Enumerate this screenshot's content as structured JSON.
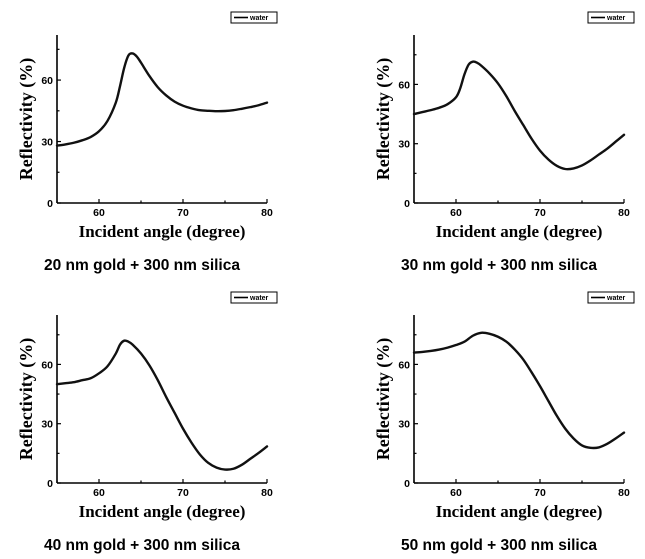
{
  "chart_data": [
    {
      "type": "line",
      "caption": "20 nm gold + 300 nm silica",
      "xlabel": "Incident angle (degree)",
      "ylabel": "Reflectivity (%)",
      "xlim": [
        55,
        80
      ],
      "ylim": [
        0,
        82
      ],
      "xticks": [
        "60",
        "70",
        "80"
      ],
      "yticks": [
        "0",
        "30",
        "60"
      ],
      "series": [
        {
          "name": "water",
          "x": [
            55,
            56,
            57,
            58,
            59,
            60,
            61,
            62,
            62.5,
            63,
            63.5,
            64,
            64.5,
            65,
            66,
            67,
            68,
            69,
            70,
            71,
            72,
            73,
            74,
            75,
            76,
            77,
            78,
            79,
            80
          ],
          "y": [
            28,
            28.6,
            29.4,
            30.6,
            32.2,
            35,
            40,
            49,
            57,
            66,
            72,
            73,
            71.5,
            68.5,
            62,
            56.5,
            52.5,
            49.5,
            47.5,
            46.2,
            45.3,
            45,
            44.8,
            44.9,
            45.3,
            46,
            46.8,
            47.7,
            49
          ]
        }
      ]
    },
    {
      "type": "line",
      "caption": "30 nm gold + 300 nm silica",
      "xlabel": "Incident angle (degree)",
      "ylabel": "Reflectivity (%)",
      "xlim": [
        55,
        80
      ],
      "ylim": [
        0,
        85
      ],
      "xticks": [
        "60",
        "70",
        "80"
      ],
      "yticks": [
        "0",
        "30",
        "60"
      ],
      "series": [
        {
          "name": "water",
          "x": [
            55,
            56,
            57,
            58,
            59,
            60,
            60.5,
            61,
            61.5,
            62,
            62.5,
            63,
            64,
            65,
            66,
            67,
            68,
            69,
            70,
            71,
            72,
            73,
            74,
            75,
            76,
            77,
            78,
            79,
            80
          ],
          "y": [
            45,
            46,
            47,
            48.2,
            50,
            53.5,
            58,
            65,
            70,
            71.5,
            71,
            69.5,
            65.5,
            60.5,
            54,
            46.5,
            39.5,
            32.5,
            26.5,
            22,
            18.8,
            17.2,
            17.5,
            19,
            21.5,
            24.5,
            27.5,
            31,
            34.5
          ]
        }
      ]
    },
    {
      "type": "line",
      "caption": "40 nm gold + 300 nm silica",
      "xlabel": "Incident angle (degree)",
      "ylabel": "Reflectivity (%)",
      "xlim": [
        55,
        80
      ],
      "ylim": [
        0,
        85
      ],
      "xticks": [
        "60",
        "70",
        "80"
      ],
      "yticks": [
        "0",
        "30",
        "60"
      ],
      "series": [
        {
          "name": "water",
          "x": [
            55,
            56,
            57,
            58,
            59,
            60,
            61,
            62,
            62.5,
            63,
            63.5,
            64,
            65,
            66,
            67,
            68,
            69,
            70,
            71,
            72,
            73,
            74,
            75,
            76,
            77,
            78,
            79,
            80
          ],
          "y": [
            50,
            50.5,
            51,
            52,
            53,
            55.5,
            59,
            65.5,
            70,
            72,
            71.5,
            70,
            65.5,
            59.5,
            52,
            43.5,
            35.5,
            27.5,
            20.5,
            14.5,
            10.2,
            7.8,
            6.8,
            7.2,
            9.2,
            12.2,
            15.2,
            18.5
          ]
        }
      ]
    },
    {
      "type": "line",
      "caption": "50 nm gold + 300 nm silica",
      "xlabel": "Incident angle (degree)",
      "ylabel": "Reflectivity (%)",
      "xlim": [
        55,
        80
      ],
      "ylim": [
        0,
        85
      ],
      "xticks": [
        "60",
        "70",
        "80"
      ],
      "yticks": [
        "0",
        "30",
        "60"
      ],
      "series": [
        {
          "name": "water",
          "x": [
            55,
            56,
            57,
            58,
            59,
            60,
            61,
            62,
            63,
            64,
            65,
            66,
            67,
            68,
            69,
            70,
            71,
            72,
            73,
            74,
            75,
            76,
            77,
            78,
            79,
            80
          ],
          "y": [
            66,
            66.3,
            66.8,
            67.5,
            68.5,
            69.8,
            71.5,
            74.5,
            76,
            75.5,
            74,
            71.5,
            67.5,
            62.5,
            56,
            49,
            41.5,
            34,
            27.5,
            22.5,
            19,
            17.8,
            18,
            19.8,
            22.5,
            25.5
          ]
        }
      ]
    }
  ]
}
